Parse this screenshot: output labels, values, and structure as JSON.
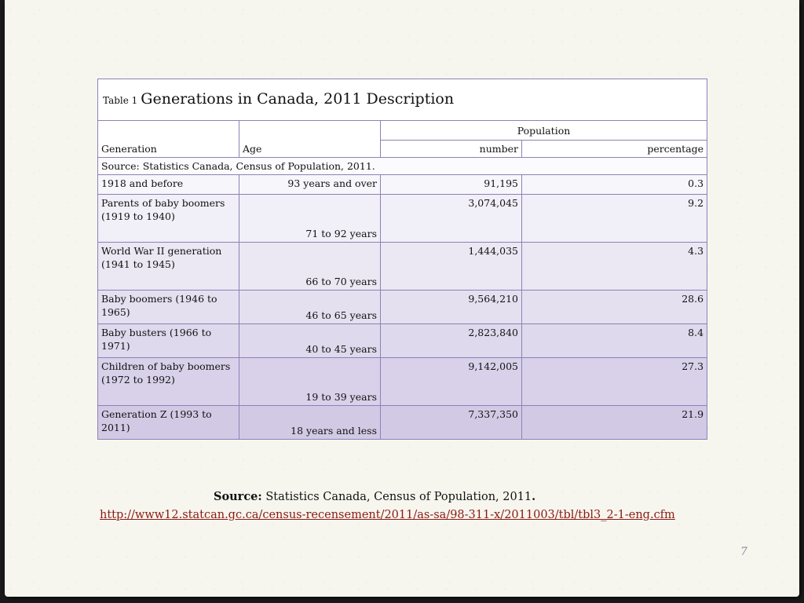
{
  "table": {
    "caption_prefix": "Table 1",
    "caption_title": "Generations in Canada, 2011 Description",
    "headers": {
      "generation": "Generation",
      "age": "Age",
      "population": "Population",
      "number": "number",
      "percentage": "percentage"
    },
    "source_note": "Source: Statistics Canada, Census of Population, 2011.",
    "rows": [
      {
        "generation": "1918 and before",
        "age": "93 years and over",
        "number": "91,195",
        "percentage": "0.3"
      },
      {
        "generation": "Parents of baby boomers (1919 to 1940)",
        "age": "71 to 92 years",
        "number": "3,074,045",
        "percentage": "9.2"
      },
      {
        "generation": "World War II generation (1941 to 1945)",
        "age": "66 to 70 years",
        "number": "1,444,035",
        "percentage": "4.3"
      },
      {
        "generation": "Baby boomers (1946 to 1965)",
        "age": "46 to 65 years",
        "number": "9,564,210",
        "percentage": "28.6"
      },
      {
        "generation": "Baby busters (1966 to 1971)",
        "age": "40 to 45 years",
        "number": "2,823,840",
        "percentage": "8.4"
      },
      {
        "generation": "Children of baby boomers (1972 to 1992)",
        "age": "19 to 39 years",
        "number": "9,142,005",
        "percentage": "27.3"
      },
      {
        "generation": "Generation Z (1993 to 2011)",
        "age": "18 years and less",
        "number": "7,337,350",
        "percentage": "21.9"
      }
    ]
  },
  "footer": {
    "source_label": "Source:",
    "source_text": " Statistics Canada, Census of Population, 2011",
    "source_end": ".",
    "url": "http://www12.statcan.gc.ca/census-recensement/2011/as-sa/98-311-x/2011003/tbl/tbl3_2-1-eng.cfm"
  },
  "page_number": "7",
  "colors": {
    "border": "#8e80b8",
    "row_gradient_top": "#f7f6fa",
    "row_gradient_bottom": "#d2cae5",
    "link": "#8b1a12"
  }
}
